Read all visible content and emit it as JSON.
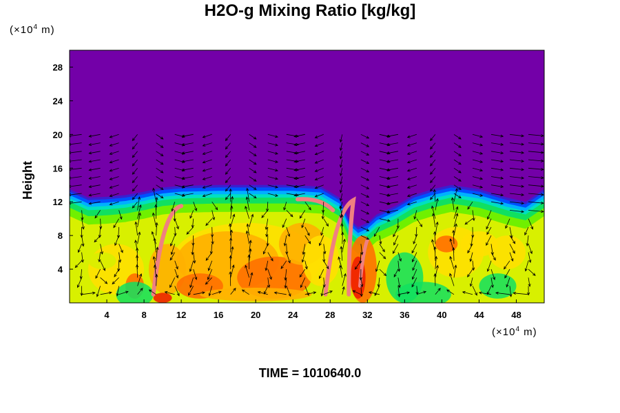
{
  "chart_data": {
    "type": "heatmap",
    "title": "H2O-g Mixing Ratio [kg/kg]",
    "ylabel": "Height",
    "x_unit_prefix": "(×10",
    "x_unit_exp": "4",
    "x_unit_suffix": " m)",
    "y_unit_prefix": "(×10",
    "y_unit_exp": "4",
    "y_unit_suffix": " m)",
    "time_label": "TIME = 1010640.0",
    "xlim": [
      0,
      51
    ],
    "ylim": [
      0,
      30
    ],
    "x_ticks": [
      4,
      8,
      12,
      16,
      20,
      24,
      28,
      32,
      36,
      40,
      44,
      48
    ],
    "y_ticks": [
      4,
      8,
      12,
      16,
      20,
      24,
      28
    ],
    "background_color": "#7300a8",
    "colormap": [
      "#7300a8",
      "#3a1fd0",
      "#0050ff",
      "#00b0ff",
      "#00e0c0",
      "#10e060",
      "#70f000",
      "#d8f000",
      "#ffe000",
      "#ffb000",
      "#ff7000",
      "#f02000",
      "#f08080"
    ],
    "moist_top_profile": [
      [
        0,
        13.5
      ],
      [
        2,
        12.5
      ],
      [
        4,
        12.6
      ],
      [
        6,
        12.8
      ],
      [
        8,
        13.2
      ],
      [
        10,
        13.7
      ],
      [
        12,
        13.9
      ],
      [
        16,
        14
      ],
      [
        20,
        14
      ],
      [
        24,
        14
      ],
      [
        27,
        13.8
      ],
      [
        29,
        12.5
      ],
      [
        30,
        10
      ],
      [
        31,
        9
      ],
      [
        32,
        9.5
      ],
      [
        33,
        10.5
      ],
      [
        35,
        11.5
      ],
      [
        37,
        12.8
      ],
      [
        39,
        13.5
      ],
      [
        41,
        14
      ],
      [
        44,
        13.5
      ],
      [
        47,
        12.5
      ],
      [
        49,
        12
      ],
      [
        51,
        13.5
      ]
    ],
    "updraft_columns": [
      8,
      18,
      29.5,
      40
    ],
    "vector_field_top": 20
  }
}
